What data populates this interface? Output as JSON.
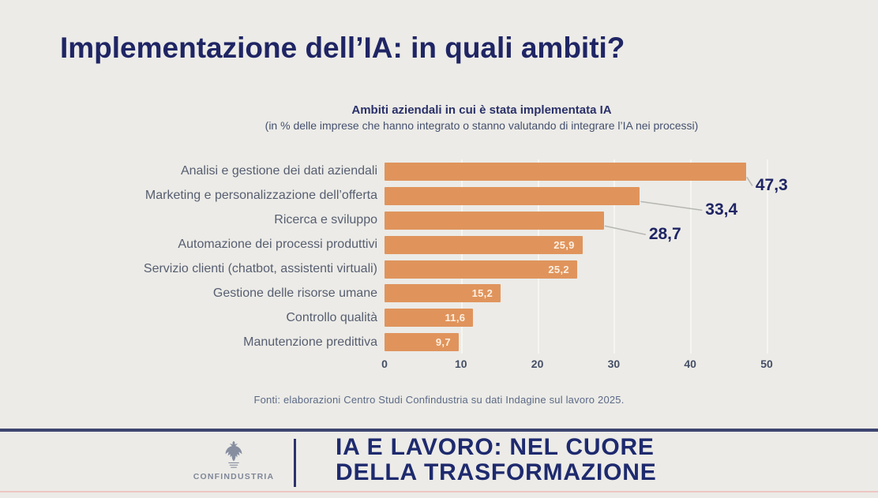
{
  "page": {
    "title": "Implementazione dell’IA: in quali ambiti?",
    "background_color": "#ECEBE7",
    "accent_navy": "#1f2564",
    "bar_color": "#E0945C"
  },
  "chart_data": {
    "type": "bar",
    "orientation": "horizontal",
    "title": "Ambiti aziendali in cui è stata implementata IA",
    "subtitle": "(in % delle imprese che hanno integrato o stanno valutando di integrare l’IA nei processi)",
    "categories": [
      "Analisi e gestione dei dati aziendali",
      "Marketing e personalizzazione dell’offerta",
      "Ricerca e sviluppo",
      "Automazione dei processi produttivi",
      "Servizio clienti (chatbot, assistenti virtuali)",
      "Gestione delle risorse umane",
      "Controllo qualità",
      "Manutenzione predittiva"
    ],
    "values": [
      47.3,
      33.4,
      28.7,
      25.9,
      25.2,
      15.2,
      11.6,
      9.7
    ],
    "value_labels": [
      "47,3",
      "33,4",
      "28,7",
      "25,9",
      "25,2",
      "15,2",
      "11,6",
      "9,7"
    ],
    "outside_label_count": 3,
    "xlim": [
      0,
      50
    ],
    "x_ticks": [
      0,
      10,
      20,
      30,
      40,
      50
    ],
    "grid": "vertical-faint",
    "legend": "none"
  },
  "footer": {
    "source": "Fonti: elaborazioni Centro Studi Confindustria su dati Indagine sul lavoro 2025."
  },
  "banner": {
    "logo_text": "CONFINDUSTRIA",
    "title_line1": "IA E LAVORO: NEL CUORE",
    "title_line2": "DELLA TRASFORMAZIONE"
  }
}
